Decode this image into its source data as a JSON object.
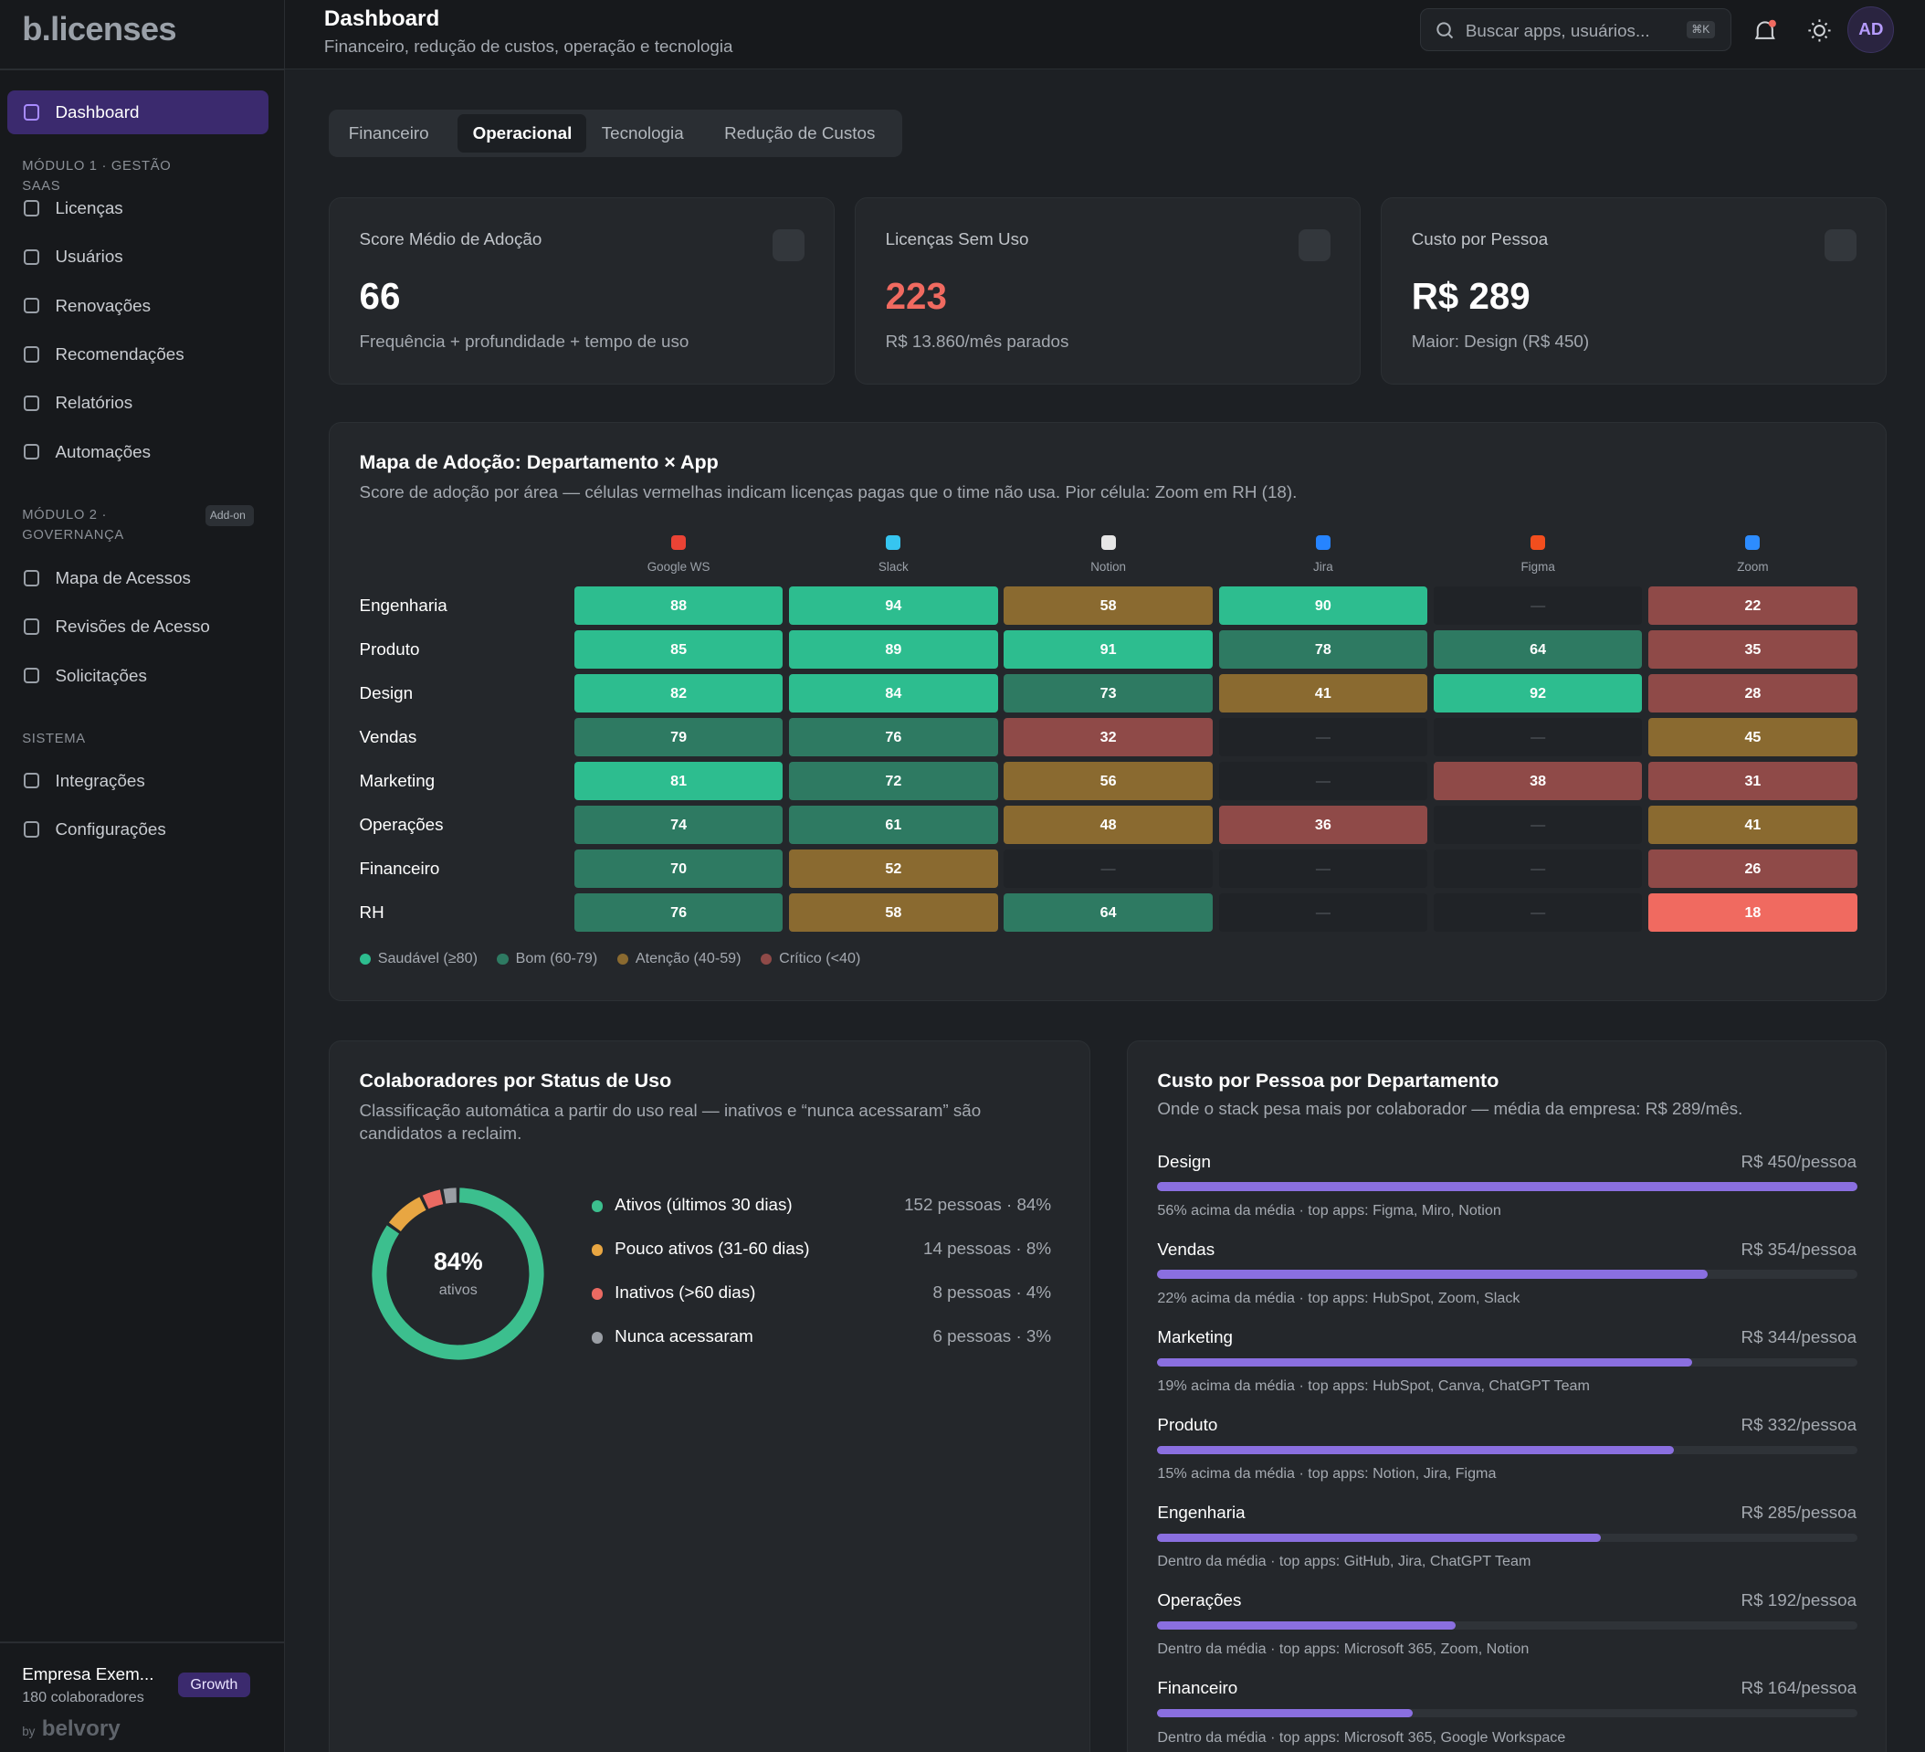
{
  "sidebar": {
    "logo": "b.licenses",
    "active_item": "Dashboard",
    "sections": [
      {
        "title": "MÓDULO 1 · GESTÃO SAAS",
        "items": [
          "Licenças",
          "Usuários",
          "Renovações",
          "Recomendações",
          "Relatórios",
          "Automações"
        ]
      },
      {
        "title": "MÓDULO 2 · GOVERNANÇA",
        "badge": "Add-on",
        "items": [
          "Mapa de Acessos",
          "Revisões de Acesso",
          "Solicitações"
        ]
      },
      {
        "title": "SISTEMA",
        "items": [
          "Integrações",
          "Configurações"
        ]
      }
    ],
    "footer": {
      "company": "Empresa Exem...",
      "size": "180 colaboradores",
      "plan": "Growth",
      "by": "by",
      "vendor": "belvory"
    }
  },
  "header": {
    "title": "Dashboard",
    "subtitle": "Financeiro, redução de custos, operação e tecnologia",
    "search_placeholder": "Buscar apps, usuários...",
    "shortcut": "⌘K",
    "avatar": "AD"
  },
  "tabs": {
    "items": [
      "Financeiro",
      "Operacional",
      "Tecnologia",
      "Redução de Custos"
    ],
    "active": 1
  },
  "kpis": [
    {
      "title": "Score Médio de Adoção",
      "value": 66,
      "note": "Frequência + profundidade + tempo de uso",
      "color": "#ffffff"
    },
    {
      "title": "Licenças Sem Uso",
      "value": 223,
      "note": "R$ 13.860/mês parados",
      "color": "#f06a60"
    },
    {
      "title": "Custo por Pessoa",
      "value": "R$ 289",
      "note": "Maior: Design (R$ 450)",
      "color": "#ffffff"
    }
  ],
  "heatmap": {
    "title": "Mapa de Adoção: Departamento × App",
    "subtitle": "Score de adoção por área — células vermelhas indicam licenças pagas que o time não usa. Pior célula: Zoom em RH (18).",
    "apps": [
      {
        "name": "Google WS",
        "color": "#ea4335"
      },
      {
        "name": "Slack",
        "color": "#36c5f0"
      },
      {
        "name": "Notion",
        "color": "#e6e6e6"
      },
      {
        "name": "Jira",
        "color": "#2684ff"
      },
      {
        "name": "Figma",
        "color": "#f24e1e"
      },
      {
        "name": "Zoom",
        "color": "#2d8cff"
      }
    ],
    "rows": [
      {
        "name": "Engenharia",
        "values": [
          88,
          94,
          58,
          90,
          "—",
          22
        ]
      },
      {
        "name": "Produto",
        "values": [
          85,
          89,
          91,
          78,
          64,
          35
        ]
      },
      {
        "name": "Design",
        "values": [
          82,
          84,
          73,
          41,
          92,
          28
        ]
      },
      {
        "name": "Vendas",
        "values": [
          79,
          76,
          32,
          "—",
          "—",
          45
        ]
      },
      {
        "name": "Marketing",
        "values": [
          81,
          72,
          56,
          "—",
          38,
          31
        ]
      },
      {
        "name": "Operações",
        "values": [
          74,
          61,
          48,
          36,
          "—",
          41
        ]
      },
      {
        "name": "Financeiro",
        "values": [
          70,
          52,
          "—",
          "—",
          "—",
          26
        ]
      },
      {
        "name": "RH",
        "values": [
          76,
          58,
          64,
          "—",
          "—",
          18
        ]
      }
    ],
    "legend": [
      {
        "label": "Saudável (≥80)",
        "min": 80,
        "color": "#2dbd8f"
      },
      {
        "label": "Bom (60-79)",
        "min": 60,
        "color": "#2e7a62"
      },
      {
        "label": "Atenção (40-59)",
        "min": 40,
        "color": "#8a6a30"
      },
      {
        "label": "Crítico (<40)",
        "color": "#8f4a48"
      }
    ],
    "worst_color": "#f06a60"
  },
  "status": {
    "title": "Colaboradores por Status de Uso",
    "subtitle": "Classificação automática a partir do uso real — inativos e “nunca acessaram” são candidatos a reclaim.",
    "center_value": "84%",
    "center_label": "ativos",
    "segments": [
      {
        "label": "Ativos (últimos 30 dias)",
        "value": 84,
        "value_label": "152 pessoas · 84%",
        "color": "#3cbf8e"
      },
      {
        "label": "Pouco ativos (31-60 dias)",
        "value": 8,
        "value_label": "14 pessoas · 8%",
        "color": "#e8a642"
      },
      {
        "label": "Inativos (>60 dias)",
        "value": 4,
        "value_label": "8 pessoas · 4%",
        "color": "#ea6a62"
      },
      {
        "label": "Nunca acessaram",
        "value": 3,
        "value_label": "6 pessoas · 3%",
        "color": "#9a9ea4"
      }
    ]
  },
  "cost": {
    "title": "Custo por Pessoa por Departamento",
    "subtitle": "Onde o stack pesa mais por colaborador — média da empresa: R$ 289/mês.",
    "color": "#8a6fe0",
    "items": [
      {
        "name": "Design",
        "value": 450,
        "value_label": "R$ 450/pessoa",
        "note": "56% acima da média · top apps: Figma, Miro, Notion"
      },
      {
        "name": "Vendas",
        "value": 354,
        "value_label": "R$ 354/pessoa",
        "note": "22% acima da média · top apps: HubSpot, Zoom, Slack"
      },
      {
        "name": "Marketing",
        "value": 344,
        "value_label": "R$ 344/pessoa",
        "note": "19% acima da média · top apps: HubSpot, Canva, ChatGPT Team"
      },
      {
        "name": "Produto",
        "value": 332,
        "value_label": "R$ 332/pessoa",
        "note": "15% acima da média · top apps: Notion, Jira, Figma"
      },
      {
        "name": "Engenharia",
        "value": 285,
        "value_label": "R$ 285/pessoa",
        "note": "Dentro da média · top apps: GitHub, Jira, ChatGPT Team"
      },
      {
        "name": "Operações",
        "value": 192,
        "value_label": "R$ 192/pessoa",
        "note": "Dentro da média · top apps: Microsoft 365, Zoom, Notion"
      },
      {
        "name": "Financeiro",
        "value": 164,
        "value_label": "R$ 164/pessoa",
        "note": "Dentro da média · top apps: Microsoft 365, Google Workspace"
      }
    ]
  }
}
